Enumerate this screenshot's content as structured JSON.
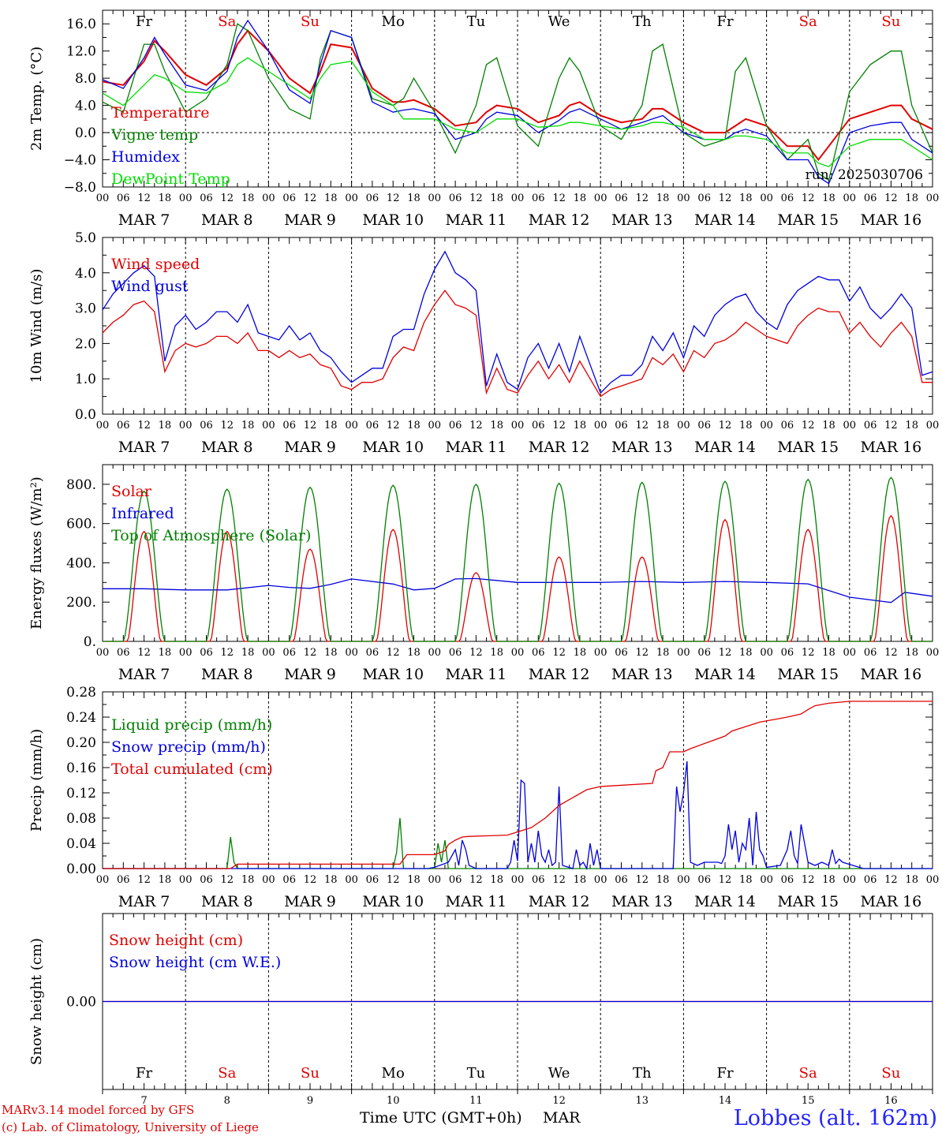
{
  "run": "run: 2025030706",
  "credits": [
    "MARv3.14 model forced by GFS",
    "(c) Lab. of Climatology, University of Liege"
  ],
  "station": "Lobbes (alt. 162m)",
  "x_axis": {
    "label": "Time UTC (GMT+0h)",
    "month_label": "MAR",
    "hour_ticks": [
      "00",
      "06",
      "12",
      "18"
    ],
    "final_tick": "00",
    "dates": [
      "MAR  7",
      "MAR  8",
      "MAR  9",
      "MAR 10",
      "MAR 11",
      "MAR 12",
      "MAR 13",
      "MAR 14",
      "MAR 15",
      "MAR 16"
    ],
    "day_numbers": [
      "7",
      "8",
      "9",
      "10",
      "11",
      "12",
      "13",
      "14",
      "15",
      "16"
    ],
    "weekdays": [
      {
        "label": "Fr",
        "weekend": false
      },
      {
        "label": "Sa",
        "weekend": true
      },
      {
        "label": "Su",
        "weekend": true
      },
      {
        "label": "Mo",
        "weekend": false
      },
      {
        "label": "Tu",
        "weekend": false
      },
      {
        "label": "We",
        "weekend": false
      },
      {
        "label": "Th",
        "weekend": false
      },
      {
        "label": "Fr",
        "weekend": false
      },
      {
        "label": "Sa",
        "weekend": true
      },
      {
        "label": "Su",
        "weekend": true
      }
    ]
  },
  "colors": {
    "red": "#e00000",
    "green": "#008000",
    "blue": "#0000dd",
    "lightgreen": "#00dd00",
    "weekend": "#e00000"
  },
  "chart_data": [
    {
      "type": "line",
      "ylabel": "2m Temp. (°C)",
      "ylim": [
        -8,
        18
      ],
      "yticks": [
        -8,
        -4,
        0,
        4,
        8,
        12,
        16
      ],
      "ytick_labels": [
        "−8.0",
        "−4.0",
        "0.0",
        "4.0",
        "8.0",
        "12.0",
        "16.0"
      ],
      "hours": [
        0,
        6,
        12,
        15,
        18,
        24,
        30,
        36,
        39,
        42,
        48,
        54,
        60,
        63,
        66,
        72,
        78,
        84,
        87,
        90,
        96,
        102,
        108,
        111,
        114,
        120,
        126,
        132,
        135,
        138,
        144,
        150,
        156,
        159,
        162,
        168,
        174,
        180,
        183,
        186,
        192,
        198,
        204,
        207,
        210,
        216,
        222,
        228,
        231,
        234,
        240
      ],
      "series": [
        {
          "name": "Temperature",
          "color": "red",
          "values": [
            7.5,
            7,
            10.5,
            13.5,
            12,
            8.5,
            7,
            9.5,
            13,
            15,
            12,
            8,
            5.8,
            9,
            13,
            12.5,
            6.5,
            4.5,
            4.5,
            4.8,
            3.5,
            1,
            1.5,
            3,
            4,
            3.5,
            1.5,
            2.5,
            4,
            4.5,
            2.5,
            1.5,
            2,
            3.5,
            3.5,
            1.5,
            0,
            0,
            1,
            2,
            1,
            -2,
            -2,
            -4,
            -2,
            2,
            3,
            4,
            4,
            2,
            0.5
          ]
        },
        {
          "name": "Vigne temp",
          "color": "green",
          "values": [
            4.5,
            3,
            13,
            13,
            9,
            3,
            5,
            10,
            16,
            15,
            8,
            3.5,
            2,
            11,
            15,
            14,
            5,
            4,
            5,
            8,
            3,
            -3,
            4,
            10,
            11,
            1,
            -2,
            8,
            11,
            9,
            1,
            -1,
            4,
            12,
            13,
            0,
            -2,
            -1,
            9,
            11,
            1,
            -4,
            -1,
            -6,
            -7,
            6,
            10,
            12,
            12,
            4,
            -3
          ]
        },
        {
          "name": "Humidex",
          "color": "blue",
          "values": [
            7.8,
            6.5,
            11,
            14,
            11.5,
            7,
            6.2,
            9,
            14,
            16.5,
            12,
            6.3,
            4.3,
            10,
            15,
            14,
            4.5,
            3,
            3.3,
            3.5,
            2.8,
            -1,
            0,
            2,
            3,
            2.5,
            0,
            1.8,
            3,
            3.5,
            2,
            0.5,
            1.5,
            2,
            2.5,
            0,
            -1,
            -1,
            0,
            0.5,
            -0.5,
            -4,
            -4,
            -6.5,
            -7.5,
            0,
            1,
            1.5,
            1.5,
            -1,
            -3
          ]
        },
        {
          "name": "DewPoint Temp",
          "color": "lightgreen",
          "values": [
            5.8,
            4,
            7,
            8.5,
            8,
            6,
            5.8,
            7.5,
            10,
            11,
            9,
            7,
            5,
            8,
            10,
            10.5,
            6,
            4,
            2,
            2,
            2,
            0.5,
            0,
            1,
            2,
            2,
            0.8,
            1,
            1.5,
            1.5,
            1,
            0.5,
            1,
            1.5,
            1.5,
            0.8,
            -1,
            -1,
            -0.5,
            -0.5,
            -1,
            -3,
            -3,
            -4.5,
            -5,
            -2,
            -1,
            -1,
            -1,
            -2,
            -4
          ]
        }
      ],
      "legend": [
        "Temperature",
        "Vigne temp",
        "Humidex",
        "DewPoint Temp"
      ],
      "legend_position": "left",
      "zero_line": true
    },
    {
      "type": "line",
      "ylabel": "10m Wind (m/s)",
      "ylim": [
        0,
        5
      ],
      "yticks": [
        0,
        1,
        2,
        3,
        4,
        5
      ],
      "ytick_labels": [
        "0.0",
        "1.0",
        "2.0",
        "3.0",
        "4.0",
        "5.0"
      ],
      "hours": [
        0,
        3,
        6,
        9,
        12,
        15,
        18,
        21,
        24,
        27,
        30,
        33,
        36,
        39,
        42,
        45,
        48,
        51,
        54,
        57,
        60,
        63,
        66,
        69,
        72,
        75,
        78,
        81,
        84,
        87,
        90,
        93,
        96,
        99,
        102,
        105,
        108,
        111,
        114,
        117,
        120,
        123,
        126,
        129,
        132,
        135,
        138,
        141,
        144,
        147,
        150,
        153,
        156,
        159,
        162,
        165,
        168,
        171,
        174,
        177,
        180,
        183,
        186,
        189,
        192,
        195,
        198,
        201,
        204,
        207,
        210,
        213,
        216,
        219,
        222,
        225,
        228,
        231,
        234,
        237,
        240
      ],
      "series": [
        {
          "name": "Wind speed",
          "color": "red",
          "values": [
            2.3,
            2.6,
            2.8,
            3.1,
            3.2,
            2.9,
            1.2,
            1.8,
            2.0,
            1.9,
            2.0,
            2.2,
            2.2,
            2.0,
            2.3,
            1.8,
            1.8,
            1.6,
            1.8,
            1.6,
            1.7,
            1.4,
            1.3,
            0.8,
            0.7,
            0.9,
            0.9,
            1.0,
            1.6,
            1.9,
            1.8,
            2.6,
            3.1,
            3.5,
            3.1,
            3.0,
            2.8,
            0.6,
            1.3,
            0.7,
            0.6,
            1.1,
            1.5,
            1.0,
            1.4,
            0.9,
            1.5,
            1.0,
            0.5,
            0.7,
            0.8,
            0.9,
            1.0,
            1.6,
            1.4,
            1.7,
            1.2,
            1.8,
            1.6,
            2.0,
            2.1,
            2.3,
            2.6,
            2.4,
            2.2,
            2.1,
            2.0,
            2.5,
            2.8,
            3.0,
            2.9,
            2.9,
            2.3,
            2.6,
            2.2,
            1.9,
            2.3,
            2.6,
            2.2,
            0.9,
            0.9
          ]
        },
        {
          "name": "Wind gust",
          "color": "blue",
          "values": [
            2.95,
            3.4,
            3.7,
            4.0,
            4.2,
            3.9,
            1.5,
            2.5,
            2.8,
            2.4,
            2.6,
            2.9,
            2.9,
            2.6,
            3.1,
            2.3,
            2.2,
            2.1,
            2.5,
            2.1,
            2.3,
            1.8,
            1.6,
            1.2,
            0.9,
            1.1,
            1.3,
            1.3,
            2.2,
            2.4,
            2.4,
            3.4,
            4.1,
            4.6,
            4.0,
            3.8,
            3.5,
            0.8,
            1.7,
            0.9,
            0.7,
            1.6,
            2.0,
            1.3,
            2.0,
            1.2,
            2.2,
            1.4,
            0.6,
            0.9,
            1.1,
            1.1,
            1.4,
            2.2,
            1.8,
            2.3,
            1.6,
            2.5,
            2.2,
            2.8,
            3.1,
            3.3,
            3.4,
            2.9,
            2.6,
            2.4,
            3.1,
            3.5,
            3.7,
            3.9,
            3.8,
            3.8,
            3.2,
            3.6,
            3.0,
            2.7,
            3.0,
            3.4,
            3.0,
            1.1,
            1.2
          ]
        }
      ],
      "legend": [
        "Wind speed",
        "Wind gust"
      ],
      "legend_position": "left"
    },
    {
      "type": "line",
      "ylabel": "Energy fluxes (W/m²)",
      "ylim": [
        0,
        900
      ],
      "yticks": [
        0,
        200,
        400,
        600,
        800
      ],
      "ytick_labels": [
        "0.",
        "200.",
        "400.",
        "600.",
        "800."
      ],
      "series": [
        {
          "name": "Solar",
          "color": "red",
          "daily_peaks": [
            560,
            560,
            470,
            570,
            350,
            430,
            430,
            620,
            570,
            640
          ]
        },
        {
          "name": "Infrared",
          "color": "blue",
          "hours": [
            0,
            12,
            24,
            36,
            48,
            54,
            60,
            66,
            72,
            84,
            90,
            96,
            102,
            108,
            114,
            120,
            132,
            144,
            156,
            168,
            180,
            192,
            204,
            216,
            228,
            232,
            240
          ],
          "values": [
            268,
            268,
            262,
            262,
            285,
            275,
            270,
            290,
            318,
            292,
            262,
            270,
            318,
            320,
            310,
            300,
            300,
            300,
            305,
            300,
            305,
            300,
            293,
            225,
            198,
            250,
            230
          ]
        },
        {
          "name": "Top of Atmosphere (Solar)",
          "color": "green",
          "daily_peaks": [
            765,
            775,
            785,
            795,
            800,
            805,
            810,
            815,
            825,
            835
          ]
        }
      ],
      "legend": [
        "Solar",
        "Infrared",
        "Top of Atmosphere (Solar)"
      ],
      "legend_position": "left"
    },
    {
      "type": "line",
      "ylabel": "Precip (mm/h)",
      "ylim": [
        0,
        0.28
      ],
      "yticks": [
        0,
        0.04,
        0.08,
        0.12,
        0.16,
        0.2,
        0.24,
        0.28
      ],
      "ytick_labels": [
        "0.00",
        "0.04",
        "0.08",
        "0.12",
        "0.16",
        "0.20",
        "0.24",
        "0.28"
      ],
      "series": [
        {
          "name": "Liquid precip (mm/h)",
          "color": "green",
          "hours": [
            0,
            36,
            37,
            38,
            39,
            84,
            85,
            86,
            87,
            96,
            97,
            98,
            99,
            100,
            240
          ],
          "values": [
            0,
            0,
            0.05,
            0.01,
            0,
            0,
            0.025,
            0.08,
            0,
            0,
            0.04,
            0.01,
            0.045,
            0,
            0
          ]
        },
        {
          "name": "Snow precip (mm/h)",
          "color": "blue",
          "hours": [
            0,
            94,
            96,
            100,
            102,
            103,
            104,
            105,
            106,
            108,
            117,
            118,
            119,
            120,
            121,
            122,
            123,
            124,
            125,
            126,
            127,
            128,
            129,
            130,
            131,
            132,
            133,
            136,
            137,
            138,
            139,
            140,
            141,
            142,
            143,
            144,
            156,
            160,
            165,
            166,
            167,
            168,
            169,
            170,
            172,
            174,
            178,
            179,
            180,
            181,
            182,
            183,
            184,
            185,
            186,
            187,
            188,
            189,
            190,
            191,
            192,
            196,
            198,
            199,
            200,
            201,
            202,
            204,
            206,
            208,
            210,
            211,
            212,
            213,
            214,
            220,
            240
          ],
          "values": [
            0,
            0,
            0.002,
            0.01,
            0.03,
            0.005,
            0.045,
            0.03,
            0.005,
            0,
            0,
            0.01,
            0.045,
            0.012,
            0.14,
            0.135,
            0.01,
            0.04,
            0.01,
            0.06,
            0.02,
            0.01,
            0.03,
            0.005,
            0.01,
            0.13,
            0.005,
            0,
            0.03,
            0.005,
            0.01,
            0,
            0.04,
            0.005,
            0.03,
            0,
            0,
            0,
            0,
            0.13,
            0.09,
            0.12,
            0.17,
            0.01,
            0.005,
            0.01,
            0.01,
            0.008,
            0.02,
            0.07,
            0.03,
            0.06,
            0.01,
            0.04,
            0.03,
            0.08,
            0.005,
            0.09,
            0.03,
            0.02,
            0.002,
            0.005,
            0.03,
            0.06,
            0.02,
            0.008,
            0.07,
            0.01,
            0.005,
            0.01,
            0.005,
            0.03,
            0.008,
            0.015,
            0.01,
            0,
            0
          ]
        },
        {
          "name": "Total cumulated (cm)",
          "color": "red",
          "hours": [
            0,
            37,
            39,
            86,
            88,
            96,
            99,
            100,
            102,
            104,
            106,
            112,
            117,
            120,
            124,
            128,
            132,
            140,
            144,
            159,
            160,
            162,
            164,
            168,
            170,
            175,
            180,
            182,
            186,
            190,
            196,
            198,
            202,
            204,
            206,
            210,
            216,
            240
          ],
          "values": [
            0,
            0,
            0.007,
            0.007,
            0.022,
            0.022,
            0.028,
            0.038,
            0.045,
            0.05,
            0.051,
            0.052,
            0.053,
            0.058,
            0.065,
            0.08,
            0.1,
            0.125,
            0.13,
            0.135,
            0.155,
            0.16,
            0.185,
            0.185,
            0.19,
            0.2,
            0.21,
            0.218,
            0.225,
            0.232,
            0.238,
            0.24,
            0.245,
            0.252,
            0.258,
            0.262,
            0.265,
            0.265
          ]
        }
      ],
      "legend": [
        "Liquid precip (mm/h)",
        "Snow precip (mm/h)",
        "Total cumulated (cm)"
      ],
      "legend_position": "left"
    },
    {
      "type": "line",
      "ylabel": "Snow height (cm)",
      "ylim": [
        -1,
        1
      ],
      "yticks": [
        0
      ],
      "ytick_labels": [
        "0.00"
      ],
      "series": [
        {
          "name": "Snow height (cm)",
          "color": "red",
          "hours": [
            0,
            240
          ],
          "values": [
            0,
            0
          ]
        },
        {
          "name": "Snow height (cm W.E.)",
          "color": "blue",
          "hours": [
            0,
            240
          ],
          "values": [
            0,
            0
          ]
        }
      ],
      "legend": [
        "Snow height (cm)",
        "Snow height (cm W.E.)"
      ],
      "legend_position": "left"
    }
  ]
}
